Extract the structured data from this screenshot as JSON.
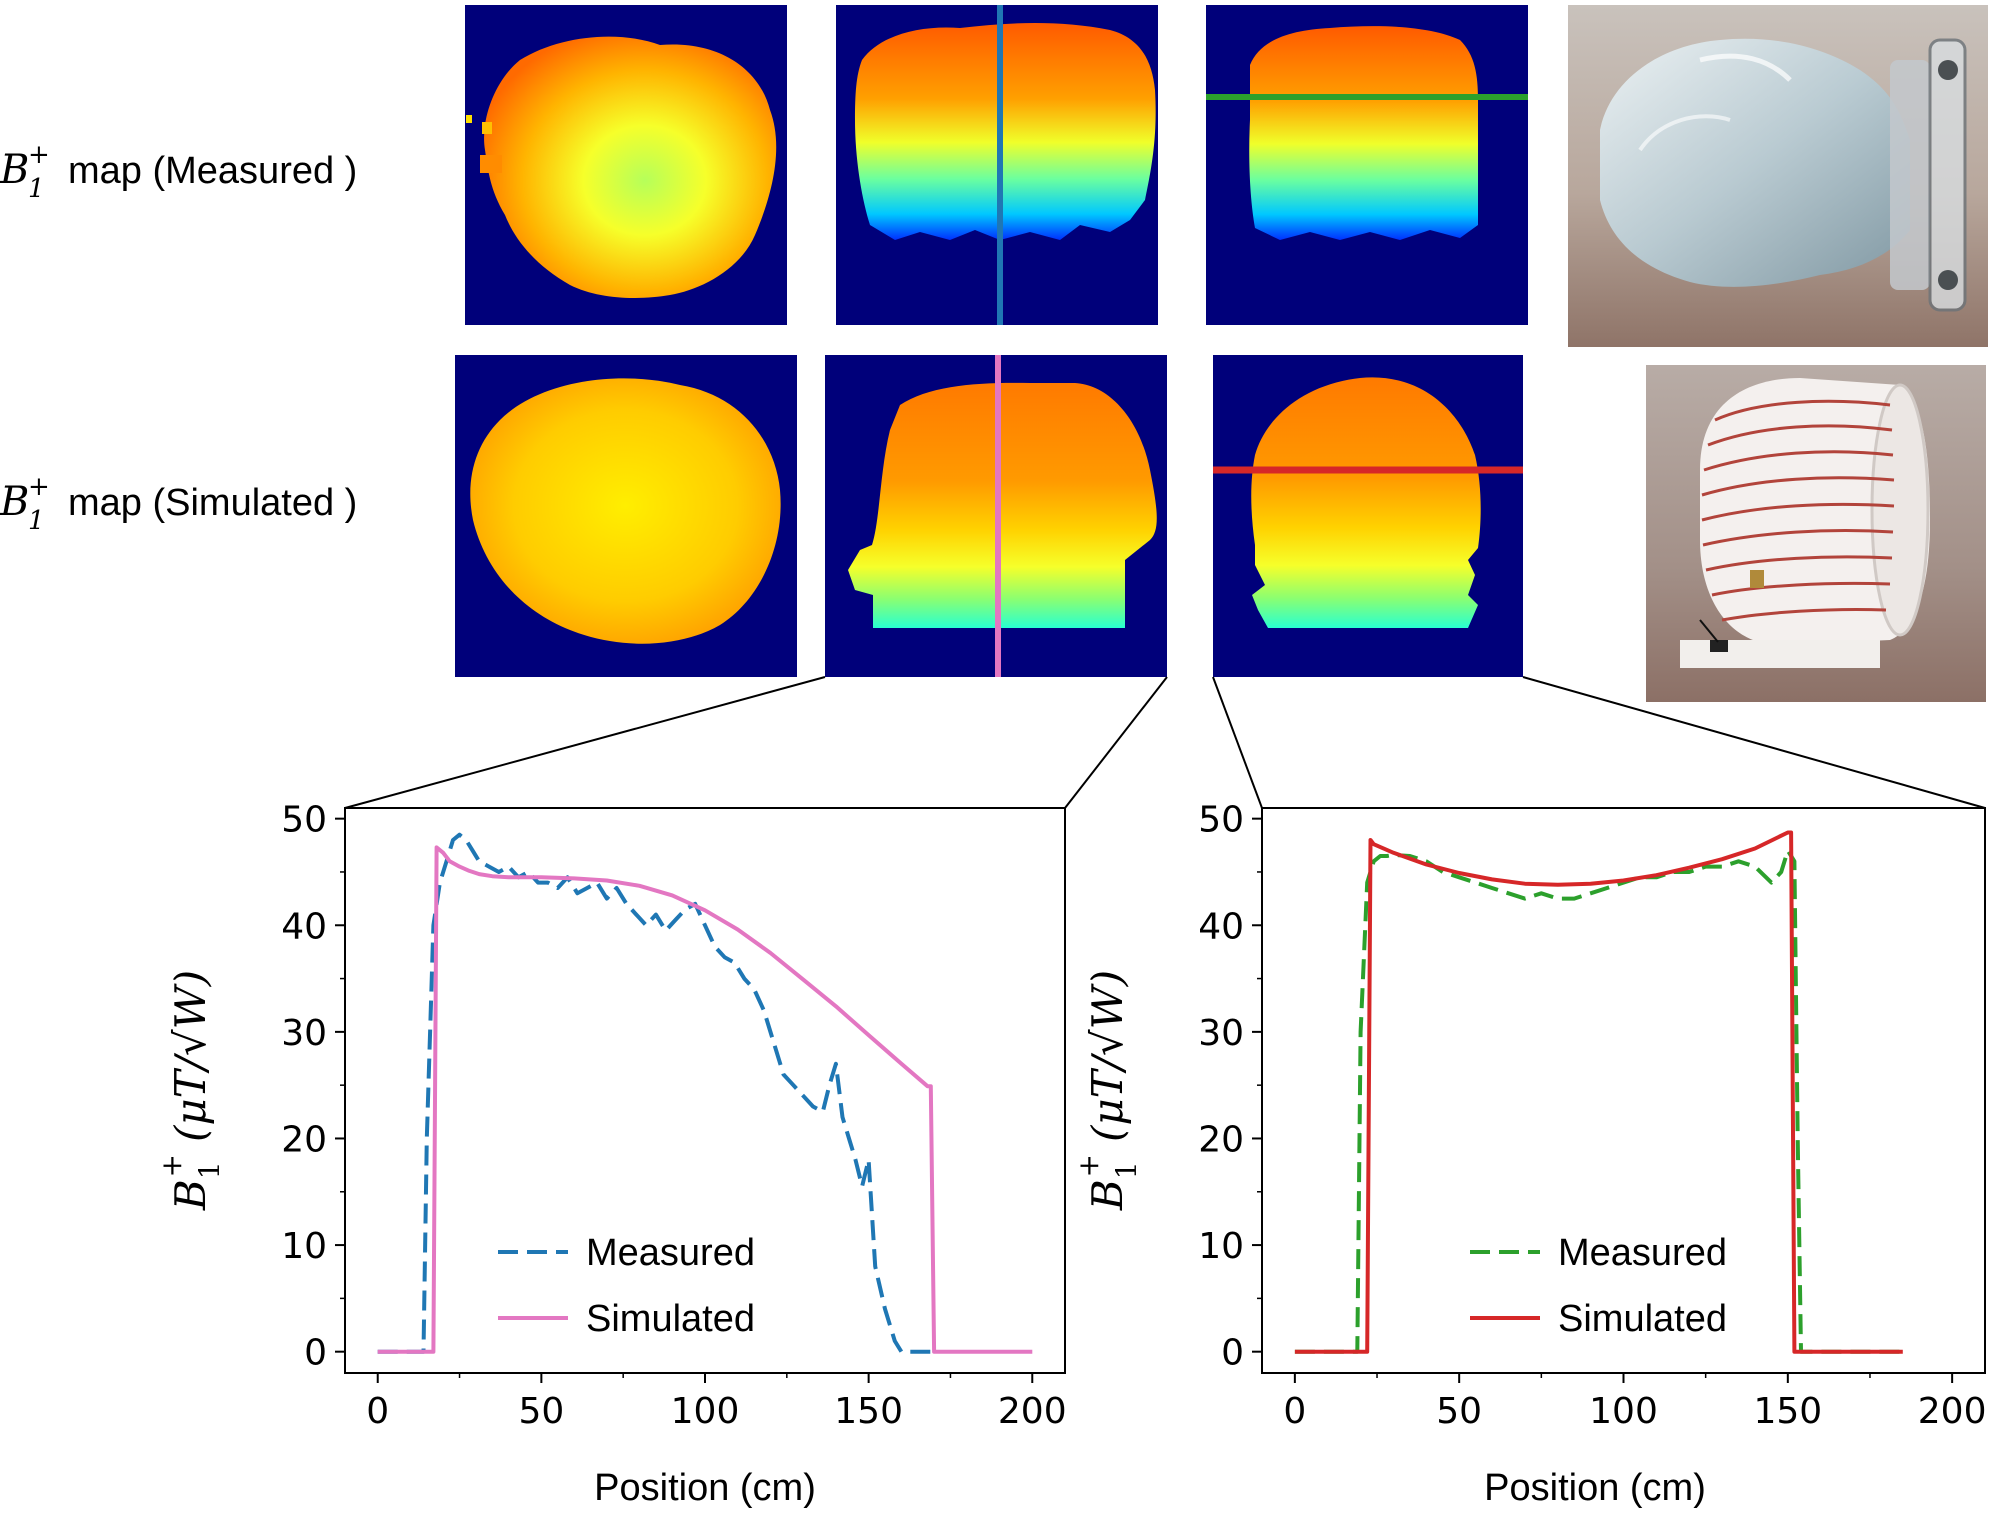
{
  "row_labels": {
    "measured": {
      "sym": "B",
      "sub": "1",
      "sup": "+",
      "text": "map (Measured )"
    },
    "simulated": {
      "sym": "B",
      "sub": "1",
      "sup": "+",
      "text": "map (Simulated )"
    }
  },
  "colors": {
    "map_background": "#00007a",
    "measured_left": "#1f77b4",
    "simulated_left": "#e377c2",
    "measured_right": "#2ca02c",
    "simulated_right": "#d62728",
    "vertical_line_measured": "#1f77b4",
    "vertical_line_simulated": "#e377c2",
    "horizontal_line_measured": "#2ca02c",
    "horizontal_line_simulated": "#d62728"
  },
  "images": [
    {
      "name": "measured-axial-map",
      "description_icon": "heatmap"
    },
    {
      "name": "measured-sagittal-map",
      "description_icon": "heatmap"
    },
    {
      "name": "measured-coronal-map",
      "description_icon": "heatmap"
    },
    {
      "name": "head-phantom-photo",
      "description_icon": "photo"
    },
    {
      "name": "simulated-axial-map",
      "description_icon": "heatmap"
    },
    {
      "name": "simulated-sagittal-map",
      "description_icon": "heatmap"
    },
    {
      "name": "simulated-coronal-map",
      "description_icon": "heatmap"
    },
    {
      "name": "coil-photo",
      "description_icon": "photo"
    }
  ],
  "chart_data": [
    {
      "type": "line",
      "title": "",
      "xlabel": "Position (cm)",
      "ylabel": "B1+ (μT/√W)",
      "ylabel_parts": {
        "sym": "B",
        "sub": "1",
        "sup": "+",
        "unit": "(μT/√W)"
      },
      "xlim": [
        -10,
        210
      ],
      "ylim": [
        -2,
        51
      ],
      "xticks": [
        0,
        50,
        100,
        150,
        200
      ],
      "yticks": [
        0,
        10,
        20,
        30,
        40,
        50
      ],
      "legend": "lower-center",
      "series": [
        {
          "name": "Measured",
          "style": "dashed",
          "color": "#1f77b4",
          "x": [
            0,
            14,
            15,
            17,
            19,
            21,
            23,
            25,
            27,
            29,
            31,
            34,
            37,
            40,
            43,
            46,
            49,
            52,
            55,
            58,
            61,
            64,
            67,
            70,
            73,
            76,
            79,
            82,
            85,
            88,
            91,
            94,
            97,
            100,
            103,
            106,
            109,
            112,
            115,
            118,
            121,
            124,
            127,
            130,
            133,
            136,
            138,
            140,
            142,
            144,
            146,
            148,
            150,
            152,
            155,
            158,
            160,
            165,
            170
          ],
          "y": [
            0,
            0,
            20,
            40,
            44,
            46,
            48,
            48.5,
            48,
            47,
            46,
            45.5,
            45,
            45.5,
            44.5,
            45,
            44,
            44,
            43.5,
            44.5,
            43,
            43.5,
            44,
            42.5,
            43.5,
            42,
            41,
            40,
            41,
            39.5,
            40.5,
            41.5,
            42,
            40,
            38,
            37,
            36.5,
            35,
            34,
            32,
            29,
            26,
            25,
            24,
            23,
            22.5,
            25,
            27,
            22,
            20,
            18,
            15.5,
            18,
            8,
            4,
            1,
            0,
            0,
            0
          ]
        },
        {
          "name": "Simulated",
          "style": "solid",
          "color": "#e377c2",
          "x": [
            0,
            17,
            18,
            20,
            22,
            25,
            28,
            31,
            35,
            40,
            50,
            60,
            70,
            80,
            90,
            100,
            110,
            120,
            130,
            140,
            150,
            160,
            168,
            169,
            170,
            200
          ],
          "y": [
            0,
            0,
            47.3,
            46.8,
            46.0,
            45.5,
            45.1,
            44.8,
            44.6,
            44.5,
            44.5,
            44.4,
            44.2,
            43.7,
            42.8,
            41.4,
            39.6,
            37.4,
            34.9,
            32.4,
            29.7,
            27.0,
            24.9,
            24.9,
            0,
            0
          ]
        }
      ]
    },
    {
      "type": "line",
      "title": "",
      "xlabel": "Position (cm)",
      "ylabel": "B1+ (μT/√W)",
      "ylabel_parts": {
        "sym": "B",
        "sub": "1",
        "sup": "+",
        "unit": "(μT/√W)"
      },
      "xlim": [
        -10,
        210
      ],
      "ylim": [
        -2,
        51
      ],
      "xticks": [
        0,
        50,
        100,
        150,
        200
      ],
      "yticks": [
        0,
        10,
        20,
        30,
        40,
        50
      ],
      "legend": "lower-center",
      "series": [
        {
          "name": "Measured",
          "style": "dashed",
          "color": "#2ca02c",
          "x": [
            0,
            19,
            20,
            22,
            24,
            26,
            28,
            30,
            35,
            40,
            45,
            50,
            55,
            60,
            65,
            70,
            75,
            80,
            85,
            90,
            95,
            100,
            105,
            110,
            115,
            120,
            125,
            130,
            135,
            140,
            145,
            148,
            150,
            152,
            153,
            154,
            156,
            160,
            170,
            185
          ],
          "y": [
            0,
            0,
            30,
            44,
            46,
            46.5,
            46.5,
            46.6,
            46.5,
            46,
            45,
            44.5,
            44,
            43.5,
            43,
            42.5,
            43,
            42.5,
            42.5,
            43,
            43.5,
            44,
            44.5,
            44.5,
            45,
            45,
            45.5,
            45.5,
            46,
            45.5,
            44,
            45,
            47,
            46,
            20,
            0,
            0,
            0,
            0,
            0
          ]
        },
        {
          "name": "Simulated",
          "style": "solid",
          "color": "#d62728",
          "x": [
            0,
            22,
            23,
            24,
            30,
            40,
            50,
            60,
            70,
            80,
            90,
            100,
            110,
            120,
            130,
            140,
            150,
            151,
            152,
            185
          ],
          "y": [
            0,
            0,
            48,
            47.6,
            46.8,
            45.7,
            44.9,
            44.3,
            43.9,
            43.8,
            43.9,
            44.2,
            44.7,
            45.4,
            46.2,
            47.2,
            48.7,
            48.7,
            0,
            0
          ]
        }
      ]
    }
  ]
}
